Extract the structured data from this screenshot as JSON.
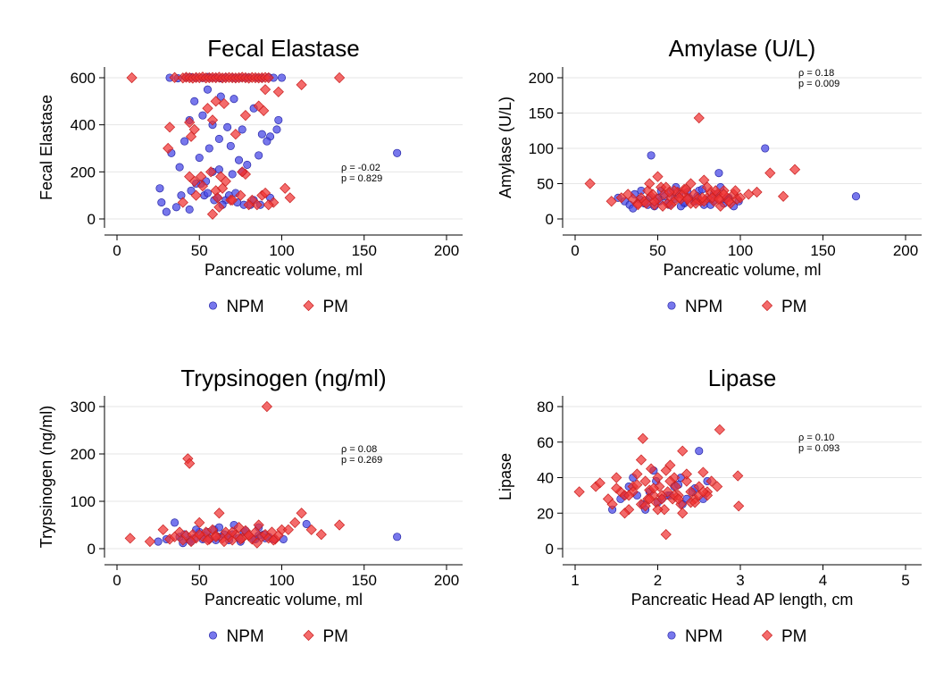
{
  "colors": {
    "npm": "#4a4ae6",
    "pm": "#f03232"
  },
  "legend": {
    "npm_label": "NPM",
    "pm_label": "PM"
  },
  "chart_data": [
    {
      "type": "scatter",
      "title": "Fecal Elastase",
      "xlabel": "Pancreatic volume, ml",
      "ylabel": "Fecal Elastase",
      "xlim": [
        0,
        200
      ],
      "ylim": [
        0,
        600
      ],
      "xticks": [
        0,
        50,
        100,
        150,
        200
      ],
      "yticks": [
        0,
        200,
        400,
        600
      ],
      "annotation": [
        "ρ = -0.02",
        "p = 0.829"
      ],
      "legend_position": "bottom",
      "grid": true,
      "series": [
        {
          "name": "NPM",
          "marker": "circle",
          "color": "#4a4ae6",
          "x": [
            32,
            37,
            42,
            45,
            48,
            52,
            55,
            57,
            60,
            63,
            66,
            70,
            72,
            75,
            78,
            80,
            85,
            88,
            92,
            95,
            100,
            55,
            63,
            71,
            83,
            47,
            52,
            44,
            58,
            67,
            76,
            88,
            93,
            98,
            38,
            33,
            41,
            50,
            56,
            62,
            69,
            74,
            79,
            86,
            91,
            97,
            45,
            53,
            61,
            66,
            73,
            81,
            26,
            27,
            30,
            36,
            39,
            44,
            51,
            55,
            59,
            64,
            68,
            72,
            77,
            83,
            87,
            93,
            170,
            58,
            62,
            70,
            76,
            48,
            54
          ],
          "y": [
            600,
            598,
            601,
            602,
            600,
            599,
            603,
            600,
            600,
            598,
            601,
            600,
            599,
            600,
            600,
            601,
            600,
            599,
            602,
            600,
            600,
            550,
            520,
            510,
            470,
            500,
            440,
            420,
            400,
            390,
            380,
            360,
            350,
            420,
            220,
            280,
            330,
            260,
            300,
            340,
            310,
            250,
            230,
            270,
            330,
            380,
            120,
            100,
            90,
            80,
            70,
            60,
            130,
            70,
            30,
            50,
            100,
            40,
            150,
            110,
            80,
            60,
            100,
            110,
            60,
            80,
            60,
            90,
            280,
            200,
            210,
            190,
            200,
            150,
            160
          ]
        },
        {
          "name": "PM",
          "marker": "diamond",
          "color": "#f03232",
          "x": [
            9,
            35,
            40,
            42,
            44,
            46,
            48,
            50,
            52,
            54,
            56,
            58,
            60,
            62,
            64,
            66,
            68,
            70,
            72,
            74,
            76,
            78,
            80,
            82,
            84,
            86,
            88,
            90,
            92,
            135,
            112,
            44,
            47,
            55,
            60,
            65,
            78,
            86,
            90,
            32,
            45,
            58,
            72,
            89,
            98,
            47,
            51,
            57,
            63,
            78,
            31,
            44,
            52,
            66,
            76,
            60,
            64,
            75,
            82,
            88,
            95,
            102,
            40,
            48,
            61,
            69,
            85,
            92,
            105,
            58,
            62,
            70,
            80,
            90
          ],
          "y": [
            600,
            601,
            599,
            602,
            600,
            598,
            601,
            600,
            603,
            599,
            600,
            601,
            600,
            602,
            599,
            600,
            601,
            600,
            599,
            600,
            602,
            600,
            598,
            601,
            600,
            599,
            600,
            601,
            600,
            600,
            570,
            410,
            380,
            470,
            500,
            490,
            440,
            480,
            550,
            390,
            350,
            420,
            360,
            460,
            540,
            160,
            180,
            200,
            180,
            190,
            300,
            180,
            140,
            160,
            200,
            120,
            130,
            100,
            80,
            100,
            70,
            130,
            70,
            100,
            90,
            80,
            60,
            60,
            90,
            20,
            50,
            80,
            60,
            110
          ]
        }
      ]
    },
    {
      "type": "scatter",
      "title": "Amylase (U/L)",
      "xlabel": "Pancreatic volume, ml",
      "ylabel": "Amylase (U/L)",
      "xlim": [
        0,
        200
      ],
      "ylim": [
        0,
        200
      ],
      "xticks": [
        0,
        50,
        100,
        150,
        200
      ],
      "yticks": [
        0,
        50,
        100,
        150,
        200
      ],
      "annotation": [
        "ρ = 0.18",
        "p = 0.009"
      ],
      "legend_position": "bottom",
      "grid": true,
      "series": [
        {
          "name": "NPM",
          "marker": "circle",
          "color": "#4a4ae6",
          "x": [
            26,
            30,
            33,
            36,
            39,
            42,
            45,
            48,
            51,
            54,
            57,
            60,
            63,
            66,
            69,
            72,
            75,
            78,
            81,
            84,
            87,
            90,
            93,
            96,
            99,
            115,
            170,
            46,
            52,
            61,
            68,
            77,
            86,
            35,
            44,
            56,
            64,
            73,
            82,
            91,
            88,
            40,
            50,
            58,
            66,
            74,
            84
          ],
          "y": [
            30,
            25,
            20,
            35,
            28,
            22,
            30,
            18,
            25,
            32,
            20,
            28,
            35,
            22,
            30,
            25,
            40,
            20,
            28,
            35,
            65,
            22,
            30,
            18,
            25,
            100,
            32,
            90,
            40,
            45,
            38,
            42,
            35,
            15,
            20,
            22,
            18,
            25,
            20,
            28,
            45,
            40,
            30,
            38,
            24,
            32,
            26
          ]
        },
        {
          "name": "PM",
          "marker": "diamond",
          "color": "#f03232",
          "x": [
            9,
            22,
            28,
            32,
            35,
            38,
            40,
            42,
            44,
            46,
            48,
            50,
            52,
            54,
            56,
            58,
            60,
            62,
            64,
            66,
            68,
            70,
            72,
            74,
            76,
            78,
            80,
            82,
            84,
            86,
            88,
            90,
            92,
            94,
            96,
            98,
            100,
            105,
            110,
            118,
            126,
            133,
            75,
            45,
            50,
            55,
            60,
            65,
            70,
            80,
            85,
            90,
            38,
            43,
            48,
            53,
            58,
            63,
            68,
            73,
            78,
            83,
            88,
            93,
            47,
            57,
            67,
            77,
            87,
            97
          ],
          "y": [
            50,
            25,
            30,
            35,
            28,
            22,
            30,
            25,
            40,
            32,
            20,
            28,
            45,
            35,
            22,
            30,
            25,
            38,
            28,
            42,
            30,
            22,
            35,
            28,
            25,
            55,
            30,
            38,
            25,
            35,
            28,
            40,
            30,
            22,
            35,
            28,
            30,
            35,
            38,
            65,
            32,
            70,
            143,
            50,
            60,
            45,
            40,
            35,
            50,
            45,
            40,
            35,
            20,
            22,
            25,
            18,
            20,
            30,
            28,
            22,
            25,
            30,
            18,
            25,
            35,
            38,
            42,
            30,
            28,
            40
          ]
        }
      ]
    },
    {
      "type": "scatter",
      "title": "Trypsinogen (ng/ml)",
      "xlabel": "Pancreatic volume, ml",
      "ylabel": "Trypsinogen (ng/ml)",
      "xlim": [
        0,
        200
      ],
      "ylim": [
        0,
        300
      ],
      "xticks": [
        0,
        50,
        100,
        150,
        200
      ],
      "yticks": [
        0,
        100,
        200,
        300
      ],
      "annotation": [
        "ρ = 0.08",
        "p = 0.269"
      ],
      "legend_position": "bottom",
      "grid": true,
      "series": [
        {
          "name": "NPM",
          "marker": "circle",
          "color": "#4a4ae6",
          "x": [
            25,
            30,
            35,
            38,
            41,
            44,
            47,
            50,
            53,
            56,
            59,
            62,
            65,
            68,
            71,
            74,
            77,
            80,
            83,
            86,
            89,
            92,
            95,
            101,
            115,
            170,
            48,
            55,
            62,
            70,
            78,
            86,
            40,
            45,
            52,
            60,
            68,
            75,
            84,
            90
          ],
          "y": [
            15,
            20,
            55,
            25,
            30,
            18,
            22,
            35,
            28,
            20,
            40,
            25,
            30,
            18,
            50,
            22,
            35,
            28,
            20,
            45,
            30,
            25,
            20,
            20,
            52,
            25,
            40,
            35,
            45,
            30,
            38,
            28,
            12,
            15,
            20,
            18,
            25,
            15,
            20,
            22
          ]
        },
        {
          "name": "PM",
          "marker": "diamond",
          "color": "#f03232",
          "x": [
            8,
            20,
            28,
            32,
            35,
            38,
            40,
            42,
            43,
            44,
            46,
            48,
            50,
            52,
            54,
            56,
            58,
            60,
            62,
            64,
            66,
            68,
            70,
            72,
            74,
            76,
            78,
            80,
            82,
            84,
            86,
            88,
            90,
            91,
            92,
            94,
            96,
            98,
            100,
            104,
            108,
            112,
            118,
            124,
            135,
            45,
            55,
            65,
            75,
            85,
            95,
            50,
            60,
            70,
            80
          ],
          "y": [
            22,
            15,
            40,
            20,
            25,
            35,
            18,
            28,
            190,
            180,
            30,
            22,
            55,
            25,
            35,
            20,
            40,
            28,
            75,
            22,
            35,
            25,
            18,
            30,
            45,
            22,
            38,
            28,
            20,
            35,
            50,
            25,
            30,
            300,
            22,
            35,
            20,
            28,
            40,
            40,
            55,
            75,
            40,
            30,
            50,
            15,
            18,
            15,
            20,
            12,
            18,
            30,
            25,
            35,
            28
          ]
        }
      ]
    },
    {
      "type": "scatter",
      "title": "Lipase",
      "xlabel": "Pancreatic Head AP length, cm",
      "ylabel": "Lipase",
      "xlim": [
        1,
        5
      ],
      "ylim": [
        0,
        80
      ],
      "xticks": [
        1,
        2,
        3,
        4,
        5
      ],
      "yticks": [
        0,
        20,
        40,
        60,
        80
      ],
      "annotation": [
        "ρ = 0.10",
        "p = 0.093"
      ],
      "legend_position": "bottom",
      "grid": true,
      "series": [
        {
          "name": "NPM",
          "marker": "circle",
          "color": "#4a4ae6",
          "x": [
            1.45,
            1.55,
            1.65,
            1.75,
            1.82,
            1.9,
            1.98,
            2.05,
            2.12,
            2.2,
            2.28,
            2.35,
            2.42,
            2.5,
            2.6,
            1.7,
            1.85,
            2.0,
            2.15,
            2.3,
            2.45,
            2.55,
            1.6,
            1.95,
            2.25
          ],
          "y": [
            22,
            28,
            35,
            30,
            25,
            32,
            38,
            28,
            30,
            35,
            40,
            28,
            32,
            55,
            38,
            40,
            22,
            26,
            30,
            25,
            34,
            28,
            30,
            44,
            36
          ]
        },
        {
          "name": "PM",
          "marker": "diamond",
          "color": "#f03232",
          "x": [
            1.05,
            1.25,
            1.3,
            1.4,
            1.45,
            1.5,
            1.55,
            1.6,
            1.65,
            1.7,
            1.75,
            1.8,
            1.82,
            1.85,
            1.88,
            1.9,
            1.92,
            1.95,
            1.98,
            2.0,
            2.02,
            2.05,
            2.08,
            2.1,
            2.12,
            2.15,
            2.18,
            2.2,
            2.22,
            2.25,
            2.28,
            2.3,
            2.35,
            2.4,
            2.45,
            2.5,
            2.55,
            2.6,
            2.65,
            2.72,
            2.75,
            2.97,
            2.98,
            2.1,
            1.6,
            1.8,
            2.0,
            2.2,
            2.4,
            1.7,
            1.9,
            2.3,
            2.5,
            1.5,
            1.75,
            2.05,
            2.35,
            2.6,
            1.85,
            2.15,
            2.45,
            1.65,
            1.95,
            2.25,
            2.55
          ],
          "y": [
            32,
            35,
            37,
            28,
            25,
            40,
            32,
            30,
            22,
            35,
            42,
            50,
            62,
            38,
            28,
            33,
            45,
            30,
            26,
            40,
            35,
            30,
            22,
            8,
            32,
            47,
            28,
            40,
            35,
            30,
            25,
            55,
            38,
            32,
            28,
            35,
            43,
            32,
            38,
            35,
            67,
            41,
            24,
            44,
            20,
            25,
            22,
            30,
            26,
            32,
            28,
            20,
            30,
            34,
            36,
            28,
            42,
            30,
            24,
            38,
            26,
            30,
            34,
            28,
            32
          ]
        }
      ]
    }
  ]
}
